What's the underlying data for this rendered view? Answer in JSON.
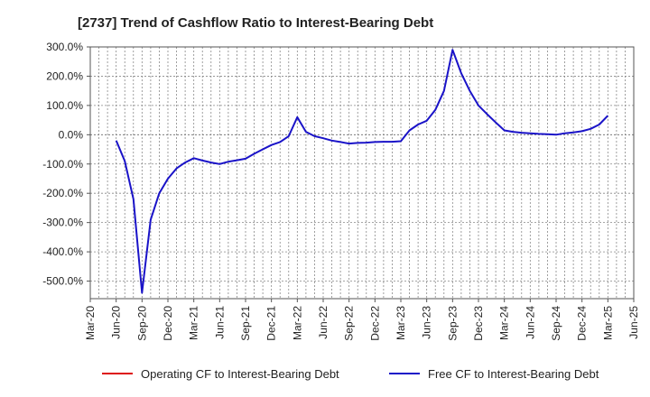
{
  "chart_data": {
    "type": "line",
    "title": "[2737]  Trend of Cashflow Ratio to Interest-Bearing Debt",
    "xlabel": "",
    "ylabel": "",
    "ylim": [
      -560,
      300
    ],
    "y_ticks": [
      "300.0%",
      "200.0%",
      "100.0%",
      "0.0%",
      "-100.0%",
      "-200.0%",
      "-300.0%",
      "-400.0%",
      "-500.0%"
    ],
    "y_tick_values": [
      300,
      200,
      100,
      0,
      -100,
      -200,
      -300,
      -400,
      -500
    ],
    "x_ticks": [
      "Mar-20",
      "Jun-20",
      "Sep-20",
      "Dec-20",
      "Mar-21",
      "Jun-21",
      "Sep-21",
      "Dec-21",
      "Mar-22",
      "Jun-22",
      "Sep-22",
      "Dec-22",
      "Mar-23",
      "Jun-23",
      "Sep-23",
      "Dec-23",
      "Mar-24",
      "Jun-24",
      "Sep-24",
      "Dec-24",
      "Mar-25",
      "Jun-25"
    ],
    "x_month_index_min": 0,
    "x_month_index_max": 63,
    "grid": true,
    "legend_position": "bottom",
    "series": [
      {
        "name": "Operating CF to Interest-Bearing Debt",
        "color": "#dd1111",
        "x": [],
        "values": []
      },
      {
        "name": "Free CF to Interest-Bearing Debt",
        "color": "#1a13c8",
        "x": [
          3,
          4,
          5,
          6,
          7,
          8,
          9,
          10,
          11,
          12,
          13,
          14,
          15,
          16,
          17,
          18,
          19,
          20,
          21,
          22,
          23,
          24,
          25,
          26,
          27,
          28,
          29,
          30,
          31,
          32,
          33,
          34,
          35,
          36,
          37,
          38,
          39,
          40,
          41,
          42,
          43,
          44,
          45,
          46,
          47,
          48,
          49,
          50,
          51,
          52,
          53,
          54,
          55,
          56,
          57,
          58,
          59,
          60
        ],
        "values": [
          -20,
          -90,
          -220,
          -540,
          -290,
          -200,
          -150,
          -115,
          -95,
          -80,
          -88,
          -95,
          -100,
          -92,
          -87,
          -82,
          -65,
          -50,
          -35,
          -25,
          -5,
          60,
          10,
          -5,
          -12,
          -20,
          -25,
          -30,
          -28,
          -27,
          -25,
          -24,
          -24,
          -22,
          15,
          35,
          48,
          85,
          150,
          290,
          210,
          150,
          100,
          70,
          42,
          15,
          10,
          7,
          5,
          3,
          2,
          0,
          5,
          8,
          12,
          20,
          35,
          65
        ]
      }
    ]
  }
}
